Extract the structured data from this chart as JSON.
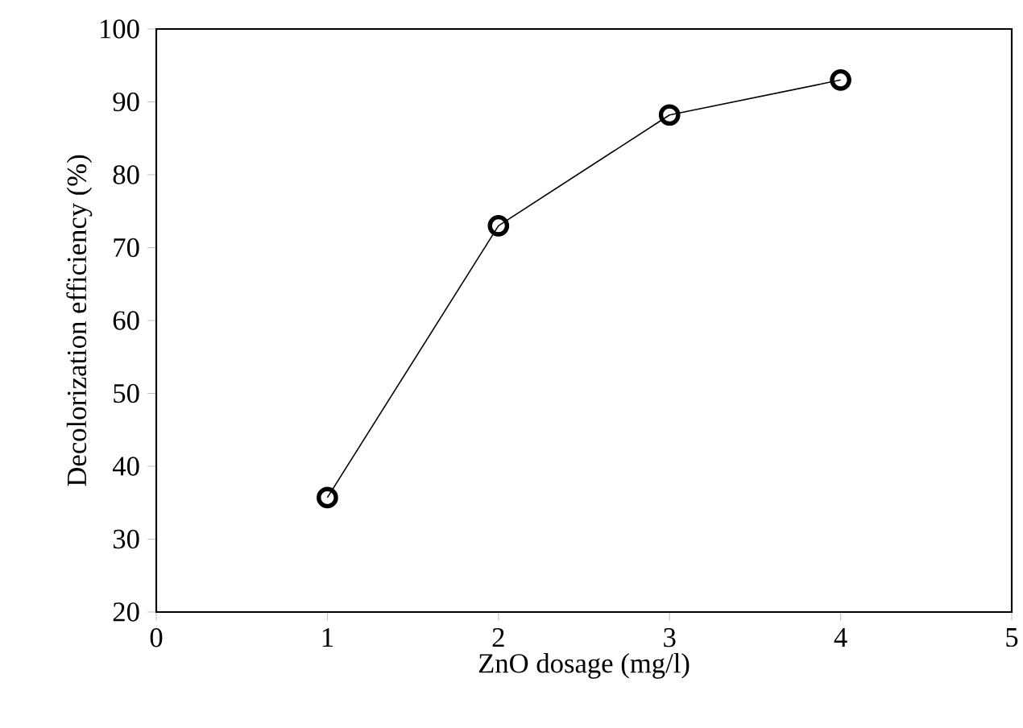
{
  "chart_data": {
    "type": "line",
    "xlabel": "ZnO dosage (mg/l)",
    "ylabel": "Decolorization efficiency  (%)",
    "x": [
      1,
      2,
      3,
      4
    ],
    "series": [
      {
        "color": "#000000",
        "values": [
          35.7,
          73,
          88.2,
          93
        ]
      }
    ],
    "xlim": [
      0,
      5
    ],
    "ylim": [
      20,
      100
    ],
    "xticks": [
      0,
      1,
      2,
      3,
      4,
      5
    ],
    "yticks": [
      20,
      30,
      40,
      50,
      60,
      70,
      80,
      90,
      100
    ],
    "marker": "circle",
    "line_style": "solid",
    "grid": false
  }
}
